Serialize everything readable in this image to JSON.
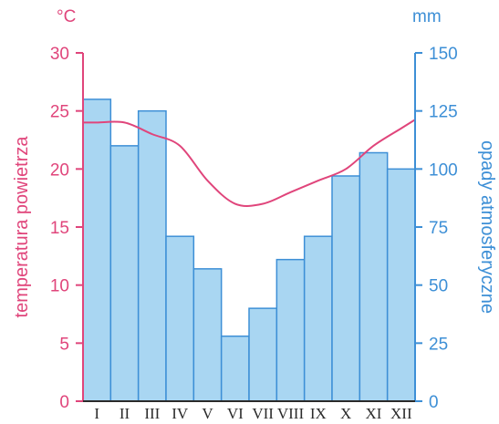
{
  "chart_data": {
    "type": "bar",
    "categories": [
      "I",
      "II",
      "III",
      "IV",
      "V",
      "VI",
      "VII",
      "VIII",
      "IX",
      "X",
      "XI",
      "XII"
    ],
    "series": [
      {
        "name": "opady atmosferyczne",
        "type": "bar",
        "axis": "right",
        "values": [
          130,
          110,
          125,
          71,
          57,
          28,
          40,
          61,
          71,
          97,
          107,
          100
        ]
      },
      {
        "name": "temperatura powietrza",
        "type": "line",
        "axis": "left",
        "values": [
          24,
          24,
          23,
          22,
          19,
          17,
          17,
          18,
          19,
          20,
          22,
          23.5
        ]
      }
    ],
    "left_axis": {
      "unit": "°C",
      "label": "temperatura powietrza",
      "ylim": [
        0,
        30
      ],
      "ticks": [
        "0",
        "5",
        "10",
        "15",
        "20",
        "25",
        "30"
      ],
      "color": "#e0457b"
    },
    "right_axis": {
      "unit": "mm",
      "label": "opady atmosferyczne",
      "ylim": [
        0,
        150
      ],
      "ticks": [
        "0",
        "25",
        "50",
        "75",
        "100",
        "125",
        "150"
      ],
      "color": "#3d8fd6"
    },
    "bar_fill": "#a9d6f2",
    "bar_stroke": "#3d8fd6",
    "line_color": "#e0457b",
    "grid": false
  }
}
